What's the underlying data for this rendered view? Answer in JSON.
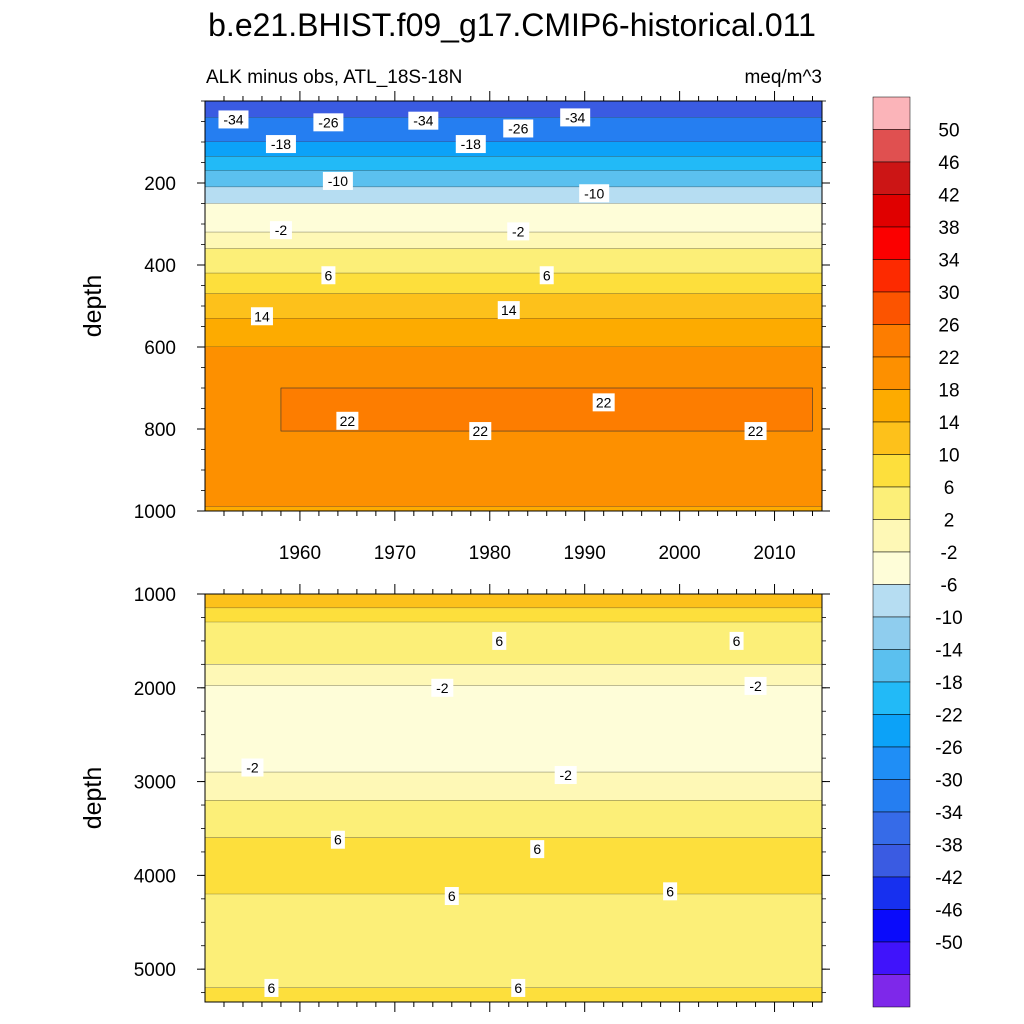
{
  "title": "b.e21.BHIST.f09_g17.CMIP6-historical.011",
  "chart_data": {
    "type": "heatmap",
    "subtitle_left": "ALK minus obs, ATL_18S-18N",
    "subtitle_right": "meq/m^3",
    "x": {
      "ticks": [
        1960,
        1970,
        1980,
        1990,
        2000,
        2010
      ],
      "range": [
        1950,
        2015
      ]
    },
    "panels": [
      {
        "name": "upper",
        "ylabel": "depth",
        "yrange": [
          0,
          1000
        ],
        "yticks": [
          200,
          400,
          600,
          800,
          1000
        ],
        "bands": [
          {
            "from": 0,
            "to": 40,
            "value": -40
          },
          {
            "from": 40,
            "to": 100,
            "value": -32
          },
          {
            "from": 100,
            "to": 135,
            "value": -24
          },
          {
            "from": 135,
            "to": 170,
            "value": -20
          },
          {
            "from": 170,
            "to": 210,
            "value": -16
          },
          {
            "from": 210,
            "to": 250,
            "value": -8
          },
          {
            "from": 250,
            "to": 320,
            "value": -4
          },
          {
            "from": 320,
            "to": 360,
            "value": 0
          },
          {
            "from": 360,
            "to": 420,
            "value": 4
          },
          {
            "from": 420,
            "to": 470,
            "value": 8
          },
          {
            "from": 470,
            "to": 530,
            "value": 12
          },
          {
            "from": 530,
            "to": 600,
            "value": 16
          },
          {
            "from": 600,
            "to": 990,
            "value": 20
          },
          {
            "from": 990,
            "to": 1000,
            "value": 16
          }
        ],
        "patch": {
          "value": 24,
          "x_from": 1958,
          "x_to": 2014,
          "top": 700,
          "bottom": 805
        },
        "contour_labels": [
          {
            "text": "-34",
            "x": 1953,
            "y": 45
          },
          {
            "text": "-26",
            "x": 1963,
            "y": 52
          },
          {
            "text": "-34",
            "x": 1973,
            "y": 48
          },
          {
            "text": "-26",
            "x": 1983,
            "y": 67
          },
          {
            "text": "-34",
            "x": 1989,
            "y": 40
          },
          {
            "text": "-18",
            "x": 1958,
            "y": 105
          },
          {
            "text": "-18",
            "x": 1978,
            "y": 105
          },
          {
            "text": "-10",
            "x": 1964,
            "y": 195
          },
          {
            "text": "-10",
            "x": 1991,
            "y": 225
          },
          {
            "text": "-2",
            "x": 1958,
            "y": 315
          },
          {
            "text": "-2",
            "x": 1983,
            "y": 318
          },
          {
            "text": "6",
            "x": 1963,
            "y": 425
          },
          {
            "text": "6",
            "x": 1986,
            "y": 425
          },
          {
            "text": "14",
            "x": 1956,
            "y": 525
          },
          {
            "text": "14",
            "x": 1982,
            "y": 510
          },
          {
            "text": "22",
            "x": 1965,
            "y": 780
          },
          {
            "text": "22",
            "x": 1992,
            "y": 735
          },
          {
            "text": "22",
            "x": 1979,
            "y": 805
          },
          {
            "text": "22",
            "x": 2008,
            "y": 805
          }
        ]
      },
      {
        "name": "lower",
        "ylabel": "depth",
        "yrange": [
          1000,
          5350
        ],
        "yticks": [
          1000,
          2000,
          3000,
          4000,
          5000
        ],
        "bands": [
          {
            "from": 1000,
            "to": 1150,
            "value": 12
          },
          {
            "from": 1150,
            "to": 1300,
            "value": 8
          },
          {
            "from": 1300,
            "to": 1750,
            "value": 4
          },
          {
            "from": 1750,
            "to": 1980,
            "value": 0
          },
          {
            "from": 1980,
            "to": 2900,
            "value": -4
          },
          {
            "from": 2900,
            "to": 3200,
            "value": 0
          },
          {
            "from": 3200,
            "to": 3600,
            "value": 4
          },
          {
            "from": 3600,
            "to": 4200,
            "value": 8
          },
          {
            "from": 4200,
            "to": 5200,
            "value": 4
          },
          {
            "from": 5200,
            "to": 5350,
            "value": 8
          }
        ],
        "contour_labels": [
          {
            "text": "6",
            "x": 1981,
            "y": 1500
          },
          {
            "text": "6",
            "x": 2006,
            "y": 1500
          },
          {
            "text": "-2",
            "x": 1975,
            "y": 2000
          },
          {
            "text": "-2",
            "x": 2008,
            "y": 1980
          },
          {
            "text": "-2",
            "x": 1955,
            "y": 2850
          },
          {
            "text": "-2",
            "x": 1988,
            "y": 2930
          },
          {
            "text": "6",
            "x": 1964,
            "y": 3620
          },
          {
            "text": "6",
            "x": 1985,
            "y": 3720
          },
          {
            "text": "6",
            "x": 1976,
            "y": 4220
          },
          {
            "text": "6",
            "x": 1999,
            "y": 4170
          },
          {
            "text": "6",
            "x": 1957,
            "y": 5200
          },
          {
            "text": "6",
            "x": 1983,
            "y": 5200
          }
        ]
      }
    ],
    "colorbar": {
      "labels": [
        "50",
        "46",
        "42",
        "38",
        "34",
        "30",
        "26",
        "22",
        "18",
        "14",
        "10",
        "6",
        "2",
        "-2",
        "-6",
        "-10",
        "-14",
        "-18",
        "-22",
        "-26",
        "-30",
        "-34",
        "-38",
        "-42",
        "-46",
        "-50"
      ],
      "colors": [
        "#fbb4b9",
        "#e05050",
        "#cc1515",
        "#e00000",
        "#fb0000",
        "#fd2a00",
        "#fc5400",
        "#fd7d00",
        "#fd9000",
        "#fdab00",
        "#fdc11b",
        "#fddf3c",
        "#fcef78",
        "#fef8b6",
        "#fefdd8",
        "#b6ddf2",
        "#8fcdee",
        "#5bc0ef",
        "#22baf7",
        "#0ca2f8",
        "#1f8ef6",
        "#257ef1",
        "#366be8",
        "#3a5be2",
        "#1730ef",
        "#0a0bfb",
        "#4013fb",
        "#7e28ea"
      ]
    }
  }
}
